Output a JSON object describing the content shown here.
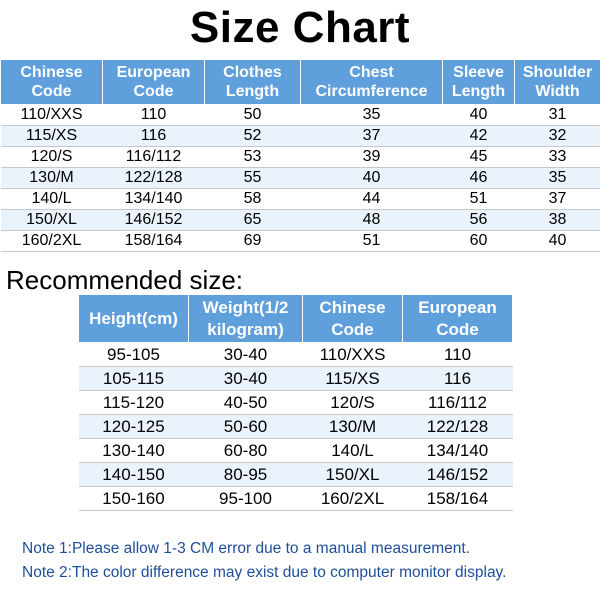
{
  "title": "Size Chart",
  "size_chart": {
    "headers": [
      [
        "Chinese",
        "Code"
      ],
      [
        "European",
        "Code"
      ],
      [
        "Clothes",
        "Length"
      ],
      [
        "Chest",
        "Circumference"
      ],
      [
        "Sleeve",
        "Length"
      ],
      [
        "Shoulder",
        "Width"
      ]
    ],
    "rows": [
      [
        "110/XXS",
        "110",
        "50",
        "35",
        "40",
        "31"
      ],
      [
        "115/XS",
        "116",
        "52",
        "37",
        "42",
        "32"
      ],
      [
        "120/S",
        "116/112",
        "53",
        "39",
        "45",
        "33"
      ],
      [
        "130/M",
        "122/128",
        "55",
        "40",
        "46",
        "35"
      ],
      [
        "140/L",
        "134/140",
        "58",
        "44",
        "51",
        "37"
      ],
      [
        "150/XL",
        "146/152",
        "65",
        "48",
        "56",
        "38"
      ],
      [
        "160/2XL",
        "158/164",
        "69",
        "51",
        "60",
        "40"
      ]
    ]
  },
  "recommended": {
    "heading": "Recommended size:",
    "headers": [
      [
        "Height(cm)"
      ],
      [
        "Weight(1/2",
        "kilogram)"
      ],
      [
        "Chinese",
        "Code"
      ],
      [
        "European",
        "Code"
      ]
    ],
    "rows": [
      [
        "95-105",
        "30-40",
        "110/XXS",
        "110"
      ],
      [
        "105-115",
        "30-40",
        "115/XS",
        "116"
      ],
      [
        "115-120",
        "40-50",
        "120/S",
        "116/112"
      ],
      [
        "120-125",
        "50-60",
        "130/M",
        "122/128"
      ],
      [
        "130-140",
        "60-80",
        "140/L",
        "134/140"
      ],
      [
        "140-150",
        "80-95",
        "150/XL",
        "146/152"
      ],
      [
        "150-160",
        "95-100",
        "160/2XL",
        "158/164"
      ]
    ]
  },
  "notes": {
    "note1": "Note 1:Please allow 1-3 CM error due to a manual measurement.",
    "note2": "Note 2:The color difference may exist due to computer monitor display."
  },
  "colors": {
    "header_bg": "#5f9fdc",
    "header_text": "#ffffff",
    "alt_row_bg": "#eaf3fc",
    "note_text": "#1f4e98"
  }
}
